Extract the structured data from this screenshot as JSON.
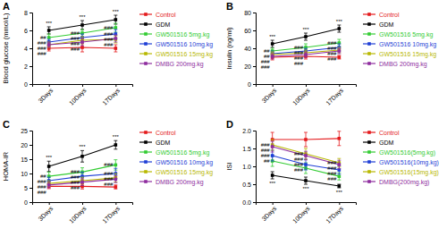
{
  "chart_data": [
    {
      "type": "line",
      "title": "A",
      "y_label": "Blood glucose (mmol/L)",
      "categories": [
        "3Days",
        "10Days",
        "17Days"
      ],
      "ylim": [
        0,
        8
      ],
      "yticks": [
        0,
        2,
        4,
        6,
        8
      ],
      "grid": false,
      "legend": "right",
      "marker": "square",
      "line_style": "solid",
      "series": [
        {
          "name": "Control",
          "color": "#e41a1c",
          "values": [
            4.0,
            4.1,
            4.0
          ],
          "errors": [
            0.3,
            0.5,
            0.4
          ]
        },
        {
          "name": "GDM",
          "color": "#000000",
          "values": [
            6.0,
            6.6,
            7.2
          ],
          "errors": [
            0.4,
            0.5,
            0.5
          ],
          "annotations": [
            "***",
            "***",
            "***"
          ]
        },
        {
          "name": "GW501516 5mg.kg",
          "color": "#33cc33",
          "values": [
            5.2,
            5.7,
            6.3
          ],
          "errors": [
            0.4,
            0.4,
            0.5
          ],
          "annotations": [
            "##",
            "###",
            "###"
          ]
        },
        {
          "name": "GW501516 10mg.kg",
          "color": "#1f3fd6",
          "values": [
            4.7,
            5.2,
            5.6
          ],
          "errors": [
            0.3,
            0.4,
            0.5
          ],
          "annotations": [
            "###",
            "###",
            "###"
          ]
        },
        {
          "name": "GW501516 15mg.kg",
          "color": "#b8b800",
          "values": [
            4.4,
            4.9,
            5.0
          ],
          "errors": [
            0.3,
            0.4,
            0.4
          ],
          "annotations": [
            "###",
            "###",
            "###"
          ]
        },
        {
          "name": "DMBG 200mg.kg",
          "color": "#8e2c9e",
          "values": [
            4.4,
            4.7,
            5.1
          ],
          "errors": [
            0.3,
            0.4,
            0.4
          ],
          "annotations": [
            "###",
            "###",
            "###"
          ]
        }
      ]
    },
    {
      "type": "line",
      "title": "B",
      "y_label": "Insulin (ng/ml)",
      "categories": [
        "3Days",
        "10Days",
        "17Days"
      ],
      "ylim": [
        0,
        80
      ],
      "yticks": [
        0,
        20,
        40,
        60,
        80
      ],
      "grid": false,
      "legend": "right",
      "marker": "square",
      "line_style": "solid",
      "series": [
        {
          "name": "Control",
          "color": "#e41a1c",
          "values": [
            30,
            31,
            30
          ],
          "errors": [
            3,
            3,
            2
          ]
        },
        {
          "name": "GDM",
          "color": "#000000",
          "values": [
            45,
            53,
            62
          ],
          "errors": [
            4,
            4,
            4
          ],
          "annotations": [
            "***",
            "***",
            "***"
          ]
        },
        {
          "name": "GW501516 5mg.kg",
          "color": "#33cc33",
          "values": [
            37,
            41,
            46
          ],
          "errors": [
            3,
            4,
            4
          ],
          "annotations": [
            "##",
            "###",
            "###"
          ]
        },
        {
          "name": "GW501516 10mg.kg",
          "color": "#1f3fd6",
          "values": [
            34,
            37,
            41
          ],
          "errors": [
            3,
            3,
            4
          ],
          "annotations": [
            "##",
            "###",
            "###"
          ]
        },
        {
          "name": "GW501516 15mg.kg",
          "color": "#b8b800",
          "values": [
            33,
            35,
            38
          ],
          "errors": [
            3,
            3,
            3
          ],
          "annotations": [
            "###",
            "###",
            "###"
          ]
        },
        {
          "name": "DMBG 200mg.kg",
          "color": "#8e2c9e",
          "values": [
            31,
            33,
            37
          ],
          "errors": [
            3,
            3,
            3
          ],
          "annotations": [
            "###",
            "###",
            "###"
          ]
        }
      ]
    },
    {
      "type": "line",
      "title": "C",
      "y_label": "HOMA-IR",
      "categories": [
        "3Days",
        "10Days",
        "17Days"
      ],
      "ylim": [
        0,
        25
      ],
      "yticks": [
        0,
        5,
        10,
        15,
        20,
        25
      ],
      "grid": false,
      "legend": "right",
      "marker": "square",
      "line_style": "solid",
      "series": [
        {
          "name": "Control",
          "color": "#e41a1c",
          "values": [
            5.5,
            5.5,
            5.3
          ],
          "errors": [
            0.8,
            0.9,
            0.7
          ]
        },
        {
          "name": "GDM",
          "color": "#000000",
          "values": [
            12.5,
            16,
            20
          ],
          "errors": [
            1.8,
            2,
            1.5
          ],
          "annotations": [
            "***",
            "***",
            "***"
          ]
        },
        {
          "name": "GW501516 5mg.kg",
          "color": "#33cc33",
          "values": [
            9,
            10.5,
            13
          ],
          "errors": [
            1.5,
            1.5,
            1.8
          ],
          "annotations": [
            "##",
            "###",
            "###"
          ]
        },
        {
          "name": "GW501516 10mg.kg",
          "color": "#1f3fd6",
          "values": [
            7.5,
            9,
            10
          ],
          "errors": [
            1.2,
            1.5,
            1.8
          ],
          "annotations": [
            "###",
            "###",
            "###"
          ]
        },
        {
          "name": "GW501516 15mg.kg",
          "color": "#b8b800",
          "values": [
            6.5,
            7.5,
            8.5
          ],
          "errors": [
            1,
            1.2,
            1.5
          ],
          "annotations": [
            "###",
            "###",
            "###"
          ]
        },
        {
          "name": "DMBG 200mg.kg",
          "color": "#8e2c9e",
          "values": [
            6,
            7,
            8
          ],
          "errors": [
            1,
            1.2,
            1.2
          ],
          "annotations": [
            "###",
            "###",
            "###"
          ]
        }
      ]
    },
    {
      "type": "line",
      "title": "D",
      "y_label": "ISI",
      "categories": [
        "3Days",
        "10Days",
        "17Days"
      ],
      "ylim": [
        0,
        2
      ],
      "yticks": [
        {
          "value": 0,
          "label": "0.0"
        },
        0.5,
        {
          "value": 1,
          "label": "1.0"
        },
        1.5,
        {
          "value": 2,
          "label": "2.0"
        }
      ],
      "grid": false,
      "legend": "right",
      "marker": "square",
      "line_style": "solid",
      "series": [
        {
          "name": "Control",
          "color": "#e41a1c",
          "values": [
            1.75,
            1.75,
            1.78
          ],
          "errors": [
            0.2,
            0.2,
            0.2
          ]
        },
        {
          "name": "GDM",
          "color": "#000000",
          "values": [
            0.75,
            0.6,
            0.45
          ],
          "errors": [
            0.1,
            0.1,
            0.05
          ],
          "annotations": [
            "***",
            "***",
            "***"
          ]
        },
        {
          "name": "GW501516(5mg.kg)",
          "color": "#33cc33",
          "values": [
            1.15,
            0.95,
            0.72
          ],
          "errors": [
            0.15,
            0.15,
            0.1
          ],
          "annotations": [
            "##",
            "###",
            "###"
          ]
        },
        {
          "name": "GW501516(10mg.kg)",
          "color": "#1f3fd6",
          "values": [
            1.3,
            1.05,
            0.9
          ],
          "errors": [
            0.15,
            0.15,
            0.12
          ],
          "annotations": [
            "###",
            "###",
            "###"
          ]
        },
        {
          "name": "GW501516(15mg.kg)",
          "color": "#b8b800",
          "values": [
            1.6,
            1.35,
            1.1
          ],
          "errors": [
            0.15,
            0.15,
            0.12
          ],
          "annotations": [
            "###",
            "###",
            "###"
          ]
        },
        {
          "name": "DMBG(200mg.kg)",
          "color": "#8e2c9e",
          "values": [
            1.55,
            1.3,
            1.05
          ],
          "errors": [
            0.15,
            0.12,
            0.12
          ],
          "annotations": [
            "###",
            "###",
            "###"
          ]
        }
      ]
    }
  ]
}
